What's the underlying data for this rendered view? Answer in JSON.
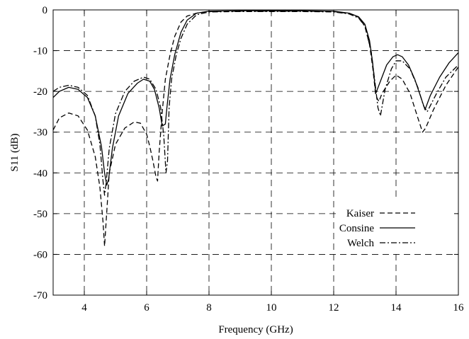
{
  "chart_data": {
    "type": "line",
    "title": "",
    "xlabel": "Frequency (GHz)",
    "ylabel": "S11 (dB)",
    "xlim": [
      3,
      16
    ],
    "ylim": [
      -70,
      0
    ],
    "xticks": [
      4,
      6,
      8,
      10,
      12,
      14,
      16
    ],
    "yticks": [
      0,
      -10,
      -20,
      -30,
      -40,
      -50,
      -60,
      -70
    ],
    "grid": true,
    "legend": "bottom-right",
    "series": [
      {
        "name": "Kaiser",
        "line_style": "dashed",
        "color": "#000000",
        "x": [
          3.0,
          3.2,
          3.5,
          3.8,
          4.1,
          4.35,
          4.5,
          4.6,
          4.65,
          4.7,
          4.8,
          5.0,
          5.3,
          5.6,
          5.8,
          6.0,
          6.1,
          6.2,
          6.3,
          6.35,
          6.4,
          6.5,
          6.6,
          6.75,
          6.9,
          7.1,
          7.3,
          7.6,
          8.0,
          9.0,
          10.0,
          11.0,
          12.0,
          12.5,
          12.8,
          13.0,
          13.15,
          13.25,
          13.35,
          13.45,
          13.55,
          13.8,
          14.0,
          14.2,
          14.45,
          14.7,
          14.85,
          14.95,
          15.2,
          15.6,
          16.0
        ],
        "y": [
          -29.5,
          -26.5,
          -25.3,
          -26.0,
          -29.5,
          -36.0,
          -43.5,
          -52.0,
          -58.0,
          -52.0,
          -40.0,
          -33.0,
          -29.0,
          -27.5,
          -27.8,
          -30.5,
          -33.5,
          -37.0,
          -41.0,
          -42.0,
          -35.0,
          -25.0,
          -17.0,
          -11.0,
          -6.5,
          -3.0,
          -1.5,
          -0.8,
          -0.4,
          -0.3,
          -0.3,
          -0.3,
          -0.4,
          -0.9,
          -1.8,
          -4.0,
          -8.5,
          -14.0,
          -21.0,
          -22.5,
          -20.5,
          -17.5,
          -16.0,
          -17.0,
          -20.5,
          -26.5,
          -30.0,
          -29.0,
          -24.5,
          -18.5,
          -14.0
        ]
      },
      {
        "name": "Consine",
        "line_style": "solid",
        "color": "#000000",
        "x": [
          3.0,
          3.2,
          3.5,
          3.8,
          4.1,
          4.35,
          4.55,
          4.65,
          4.72,
          4.78,
          4.9,
          5.1,
          5.4,
          5.7,
          5.9,
          6.1,
          6.25,
          6.4,
          6.5,
          6.6,
          6.65,
          6.75,
          6.9,
          7.1,
          7.3,
          7.6,
          8.0,
          9.0,
          10.0,
          11.0,
          12.0,
          12.5,
          12.8,
          13.0,
          13.15,
          13.25,
          13.35,
          13.5,
          13.7,
          13.9,
          14.05,
          14.2,
          14.4,
          14.6,
          14.8,
          14.93,
          15.1,
          15.4,
          15.7,
          16.0
        ],
        "y": [
          -21.5,
          -20.0,
          -19.0,
          -19.5,
          -21.5,
          -26.0,
          -33.5,
          -40.0,
          -43.0,
          -41.5,
          -34.0,
          -26.0,
          -20.5,
          -18.0,
          -17.0,
          -17.5,
          -19.5,
          -24.0,
          -28.5,
          -28.0,
          -24.0,
          -17.0,
          -11.0,
          -5.5,
          -2.5,
          -0.8,
          -0.3,
          -0.2,
          -0.2,
          -0.2,
          -0.3,
          -0.8,
          -1.7,
          -3.5,
          -7.5,
          -13.0,
          -20.5,
          -17.5,
          -13.5,
          -11.5,
          -11.0,
          -11.5,
          -13.5,
          -17.0,
          -21.5,
          -24.5,
          -21.0,
          -16.5,
          -13.0,
          -10.5
        ]
      },
      {
        "name": "Welch",
        "line_style": "dash-dot",
        "color": "#000000",
        "x": [
          3.0,
          3.2,
          3.5,
          3.8,
          4.1,
          4.35,
          4.5,
          4.6,
          4.65,
          4.7,
          4.8,
          5.0,
          5.3,
          5.6,
          5.9,
          6.1,
          6.3,
          6.45,
          6.55,
          6.62,
          6.67,
          6.72,
          6.8,
          6.95,
          7.1,
          7.3,
          7.6,
          8.0,
          9.0,
          10.0,
          11.0,
          12.0,
          12.5,
          12.8,
          13.0,
          13.2,
          13.32,
          13.42,
          13.5,
          13.65,
          13.85,
          14.0,
          14.2,
          14.45,
          14.7,
          14.88,
          15.0,
          15.3,
          15.6,
          16.0
        ],
        "y": [
          -20.0,
          -19.0,
          -18.5,
          -19.0,
          -21.0,
          -26.0,
          -33.0,
          -42.0,
          -45.5,
          -42.5,
          -34.0,
          -25.5,
          -20.0,
          -17.5,
          -16.5,
          -17.0,
          -19.5,
          -24.0,
          -31.0,
          -40.0,
          -37.0,
          -24.0,
          -17.0,
          -11.0,
          -7.0,
          -3.5,
          -1.2,
          -0.5,
          -0.4,
          -0.4,
          -0.4,
          -0.5,
          -1.0,
          -2.0,
          -4.0,
          -10.0,
          -17.5,
          -24.0,
          -26.0,
          -19.5,
          -14.5,
          -12.5,
          -12.5,
          -14.5,
          -19.0,
          -23.5,
          -25.0,
          -20.5,
          -16.5,
          -13.5
        ]
      }
    ]
  }
}
